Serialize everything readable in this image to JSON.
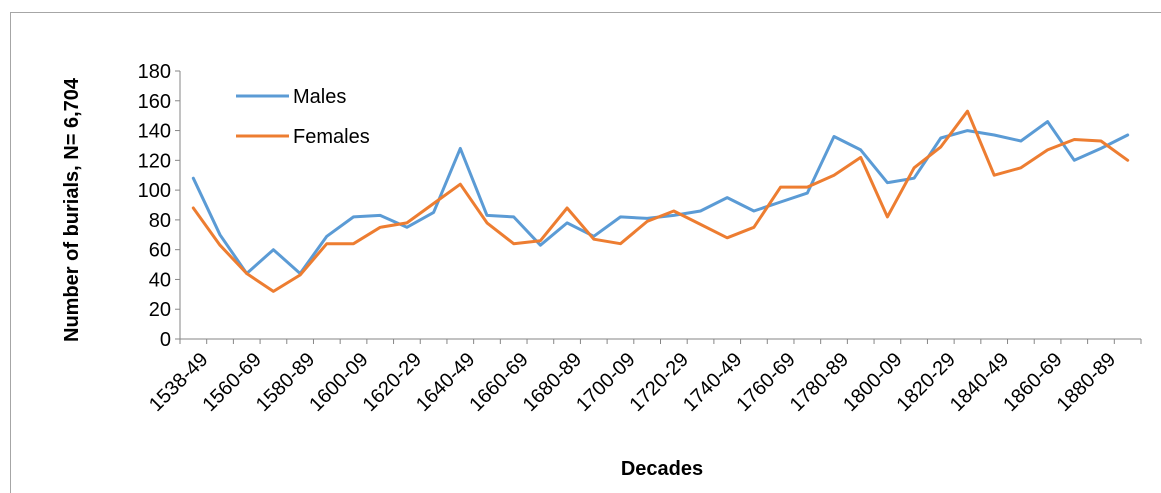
{
  "chart_data": {
    "type": "line",
    "title": "",
    "xlabel": "Decades",
    "ylabel": "Number of burials,  N= 6,704",
    "ylim": [
      0,
      180
    ],
    "yticks": [
      0,
      20,
      40,
      60,
      80,
      100,
      120,
      140,
      160,
      180
    ],
    "grid": false,
    "legend_position": "top-left",
    "x": [
      "1538-49",
      "1550-59",
      "1560-69",
      "1570-79",
      "1580-89",
      "1590-99",
      "1600-09",
      "1610-19",
      "1620-29",
      "1630-39",
      "1640-49",
      "1650-59",
      "1660-69",
      "1670-79",
      "1680-89",
      "1690-99",
      "1700-09",
      "1710-19",
      "1720-29",
      "1730-39",
      "1740-49",
      "1750-59",
      "1760-69",
      "1770-79",
      "1780-89",
      "1790-99",
      "1800-09",
      "1810-19",
      "1820-29",
      "1830-39",
      "1840-49",
      "1850-59",
      "1860-69",
      "1870-79",
      "1880-89",
      "1890-99"
    ],
    "x_tick_labels": [
      "1538-49",
      "1560-69",
      "1580-89",
      "1600-09",
      "1620-29",
      "1640-49",
      "1660-69",
      "1680-89",
      "1700-09",
      "1720-29",
      "1740-49",
      "1760-69",
      "1780-89",
      "1800-09",
      "1820-29",
      "1840-49",
      "1860-69",
      "1880-89"
    ],
    "series": [
      {
        "name": "Males",
        "color": "#5b9bd5",
        "values": [
          108,
          70,
          44,
          60,
          44,
          69,
          82,
          83,
          75,
          85,
          128,
          83,
          82,
          63,
          78,
          69,
          82,
          81,
          83,
          86,
          95,
          86,
          92,
          98,
          136,
          127,
          105,
          108,
          135,
          140,
          137,
          133,
          146,
          120,
          128,
          137
        ]
      },
      {
        "name": "Females",
        "color": "#ed7d31",
        "values": [
          88,
          63,
          44,
          32,
          43,
          64,
          64,
          75,
          78,
          91,
          104,
          78,
          64,
          66,
          88,
          67,
          64,
          79,
          86,
          77,
          68,
          75,
          102,
          102,
          110,
          122,
          82,
          115,
          129,
          153,
          110,
          115,
          127,
          134,
          133,
          120
        ]
      }
    ]
  }
}
